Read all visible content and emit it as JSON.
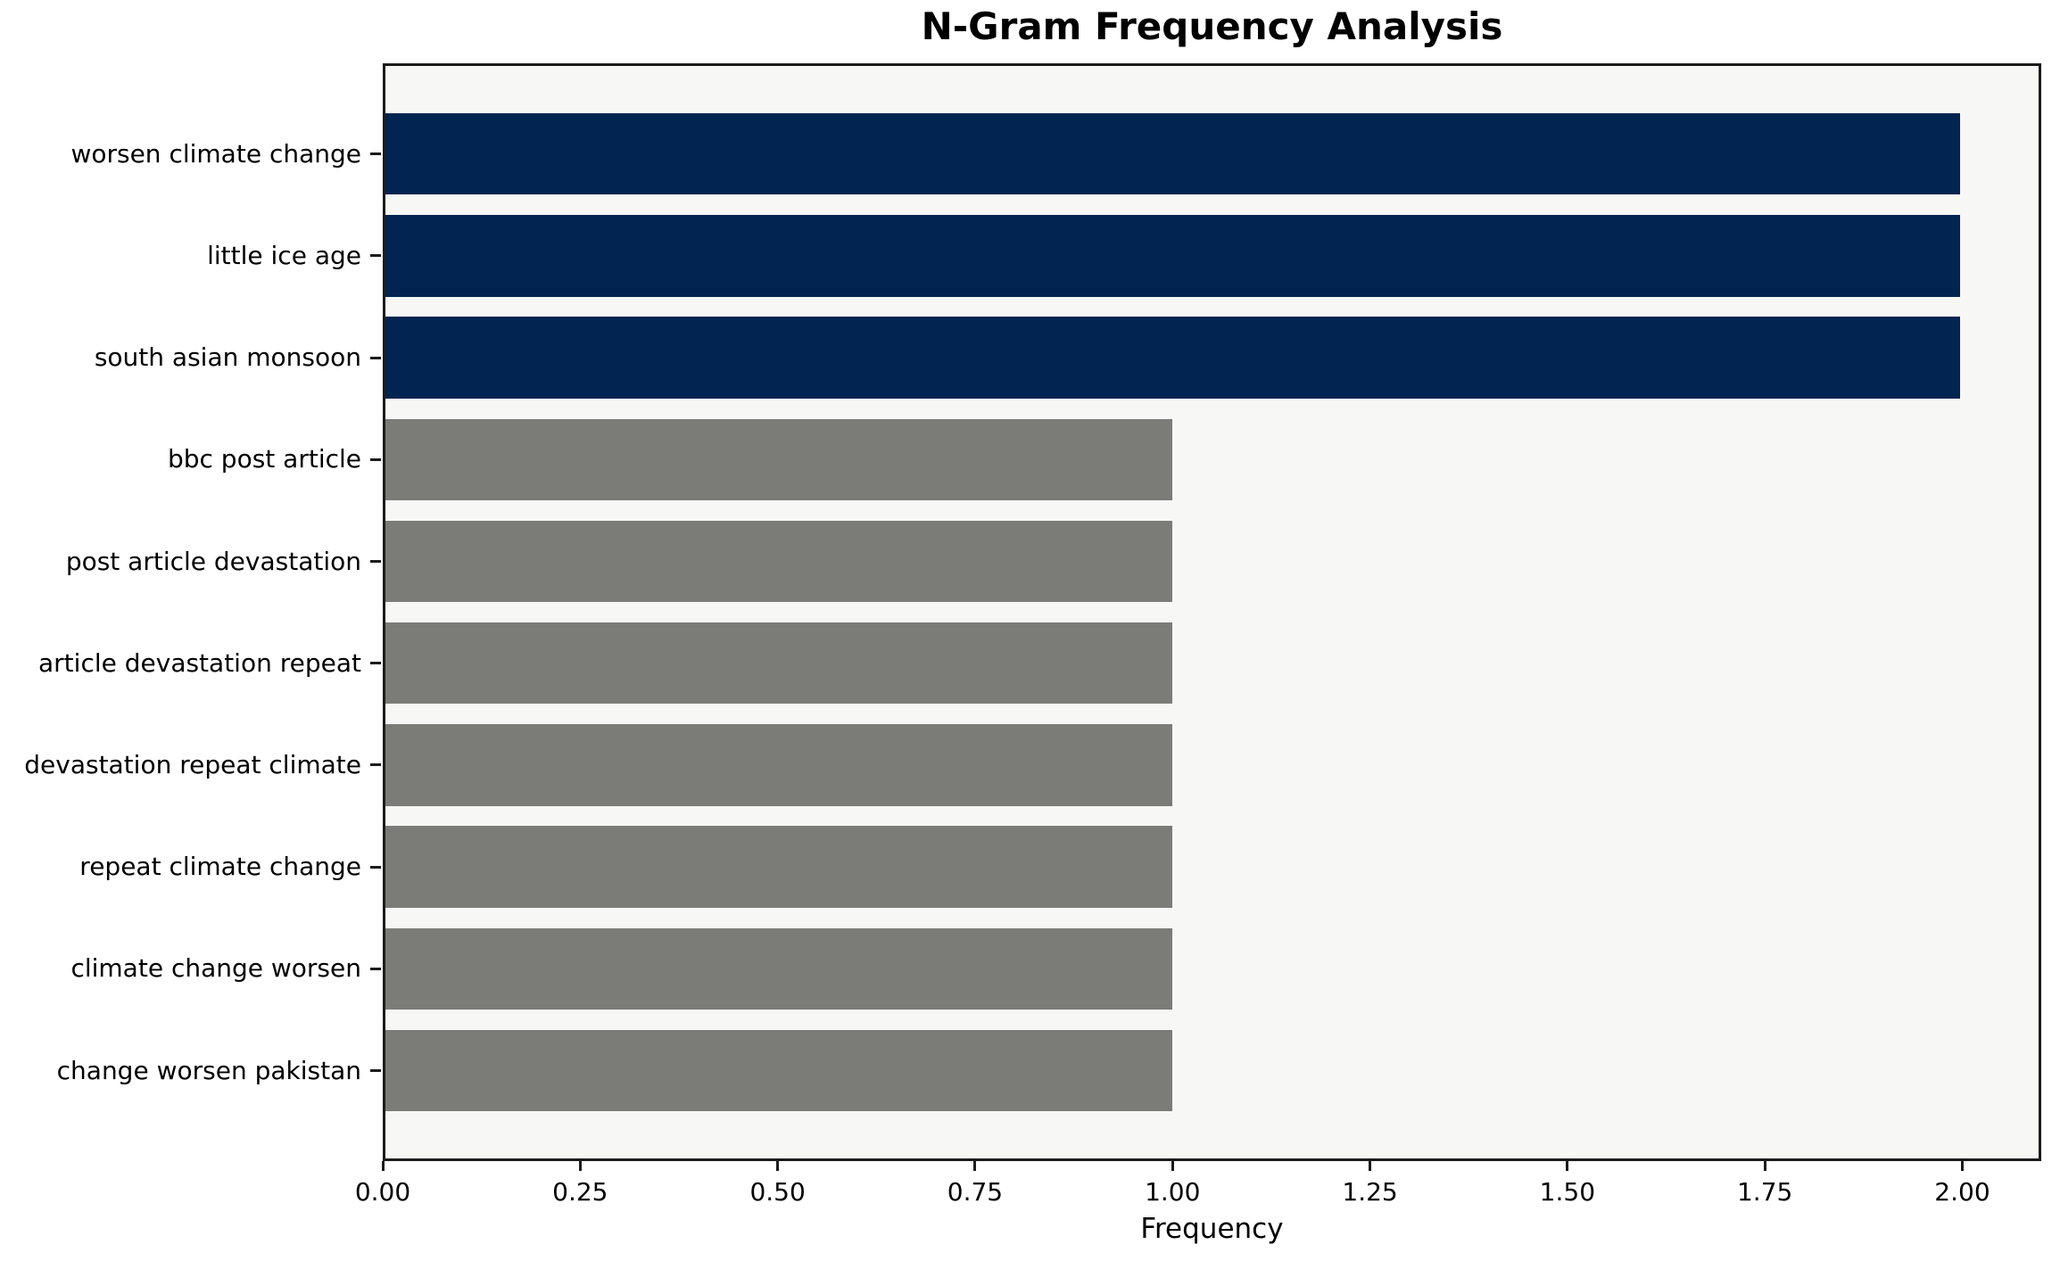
{
  "colors": {
    "bar_high": "#022450",
    "bar_low": "#7b7b78",
    "plot_bg": "#f7f7f6",
    "figure_bg": "#ffffff",
    "spine": "#1c1c1c",
    "text": "#000000"
  },
  "chart_data": {
    "type": "bar",
    "orientation": "horizontal",
    "title": "N-Gram Frequency Analysis",
    "xlabel": "Frequency",
    "ylabel": "",
    "categories": [
      "worsen climate change",
      "little ice age",
      "south asian monsoon",
      "bbc post article",
      "post article devastation",
      "article devastation repeat",
      "devastation repeat climate",
      "repeat climate change",
      "climate change worsen",
      "change worsen pakistan"
    ],
    "values": [
      2,
      2,
      2,
      1,
      1,
      1,
      1,
      1,
      1,
      1
    ],
    "bar_colors": [
      "#022450",
      "#022450",
      "#022450",
      "#7b7b78",
      "#7b7b78",
      "#7b7b78",
      "#7b7b78",
      "#7b7b78",
      "#7b7b78",
      "#7b7b78"
    ],
    "xlim": [
      0,
      2.1
    ],
    "xticks": [
      0.0,
      0.25,
      0.5,
      0.75,
      1.0,
      1.25,
      1.5,
      1.75,
      2.0
    ],
    "xtick_labels": [
      "0.00",
      "0.25",
      "0.50",
      "0.75",
      "1.00",
      "1.25",
      "1.50",
      "1.75",
      "2.00"
    ],
    "grid": false,
    "legend": null
  }
}
